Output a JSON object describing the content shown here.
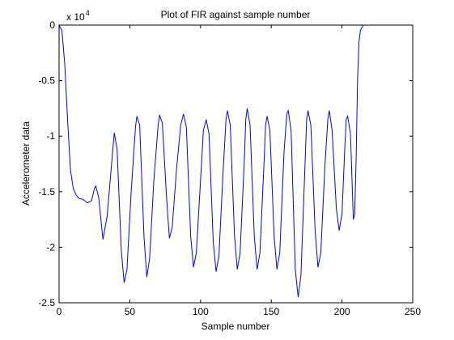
{
  "chart_data": {
    "type": "line",
    "title": "Plot of FIR against sample number",
    "xlabel": "Sample number",
    "ylabel": "Accelerometer data",
    "exponent_label": "x 10",
    "exponent_power": "4",
    "xlim": [
      0,
      250
    ],
    "ylim": [
      -2.5,
      0
    ],
    "y_scale_factor": 10000,
    "x_ticks": [
      0,
      50,
      100,
      150,
      200,
      250
    ],
    "x_tick_labels": [
      "0",
      "50",
      "100",
      "150",
      "200",
      "250"
    ],
    "y_ticks": [
      0,
      -0.5,
      -1,
      -1.5,
      -2,
      -2.5
    ],
    "y_tick_labels": [
      "0",
      "-0.5",
      "-1",
      "-1.5",
      "-2",
      "-2.5"
    ],
    "grid": false,
    "series": [
      {
        "color": "#0000ff",
        "points": [
          [
            0,
            0
          ],
          [
            2,
            -0.05
          ],
          [
            4,
            -0.35
          ],
          [
            6,
            -0.85
          ],
          [
            8,
            -1.3
          ],
          [
            10,
            -1.47
          ],
          [
            12,
            -1.53
          ],
          [
            14,
            -1.56
          ],
          [
            17,
            -1.57
          ],
          [
            20,
            -1.6
          ],
          [
            23,
            -1.58
          ],
          [
            25,
            -1.47
          ],
          [
            26,
            -1.45
          ],
          [
            28,
            -1.55
          ],
          [
            31,
            -1.93
          ],
          [
            34,
            -1.72
          ],
          [
            38,
            -1.12
          ],
          [
            39,
            -0.97
          ],
          [
            41,
            -1.12
          ],
          [
            44,
            -2.03
          ],
          [
            46,
            -2.32
          ],
          [
            48,
            -2.2
          ],
          [
            51,
            -1.5
          ],
          [
            54,
            -0.92
          ],
          [
            55,
            -0.82
          ],
          [
            57,
            -0.9
          ],
          [
            60,
            -1.9
          ],
          [
            62,
            -2.27
          ],
          [
            64,
            -2.1
          ],
          [
            67,
            -1.4
          ],
          [
            70,
            -0.9
          ],
          [
            71,
            -0.81
          ],
          [
            73,
            -0.88
          ],
          [
            76,
            -1.55
          ],
          [
            78,
            -1.92
          ],
          [
            80,
            -1.82
          ],
          [
            83,
            -1.3
          ],
          [
            86,
            -0.9
          ],
          [
            88,
            -0.8
          ],
          [
            90,
            -0.92
          ],
          [
            93,
            -1.9
          ],
          [
            95,
            -2.18
          ],
          [
            97,
            -2.05
          ],
          [
            100,
            -1.4
          ],
          [
            102,
            -0.95
          ],
          [
            104,
            -0.85
          ],
          [
            106,
            -0.98
          ],
          [
            109,
            -1.95
          ],
          [
            111,
            -2.22
          ],
          [
            113,
            -2.08
          ],
          [
            116,
            -1.3
          ],
          [
            118,
            -0.85
          ],
          [
            119,
            -0.77
          ],
          [
            121,
            -0.9
          ],
          [
            124,
            -1.9
          ],
          [
            126,
            -2.2
          ],
          [
            128,
            -2.05
          ],
          [
            131,
            -1.2
          ],
          [
            132,
            -0.85
          ],
          [
            133,
            -0.75
          ],
          [
            135,
            -0.9
          ],
          [
            138,
            -1.9
          ],
          [
            140,
            -2.2
          ],
          [
            142,
            -2.05
          ],
          [
            145,
            -1.2
          ],
          [
            146,
            -0.9
          ],
          [
            147,
            -0.82
          ],
          [
            149,
            -0.95
          ],
          [
            152,
            -1.9
          ],
          [
            154,
            -2.2
          ],
          [
            156,
            -2.05
          ],
          [
            159,
            -1.15
          ],
          [
            161,
            -0.8
          ],
          [
            162,
            -0.77
          ],
          [
            164,
            -0.95
          ],
          [
            167,
            -2.2
          ],
          [
            169,
            -2.45
          ],
          [
            171,
            -2.25
          ],
          [
            174,
            -1.2
          ],
          [
            175,
            -0.85
          ],
          [
            176,
            -0.77
          ],
          [
            178,
            -0.9
          ],
          [
            181,
            -1.85
          ],
          [
            183,
            -2.18
          ],
          [
            185,
            -2.05
          ],
          [
            188,
            -1.25
          ],
          [
            190,
            -0.85
          ],
          [
            191,
            -0.77
          ],
          [
            193,
            -0.95
          ],
          [
            196,
            -1.65
          ],
          [
            198,
            -1.85
          ],
          [
            200,
            -1.7
          ],
          [
            202,
            -1.1
          ],
          [
            203,
            -0.85
          ],
          [
            204,
            -0.82
          ],
          [
            206,
            -0.98
          ],
          [
            208,
            -1.75
          ],
          [
            209,
            -1.7
          ],
          [
            210,
            -1.2
          ],
          [
            211,
            -0.5
          ],
          [
            212,
            -0.15
          ],
          [
            213,
            -0.05
          ],
          [
            215,
            0
          ],
          [
            216,
            0
          ]
        ]
      }
    ]
  }
}
